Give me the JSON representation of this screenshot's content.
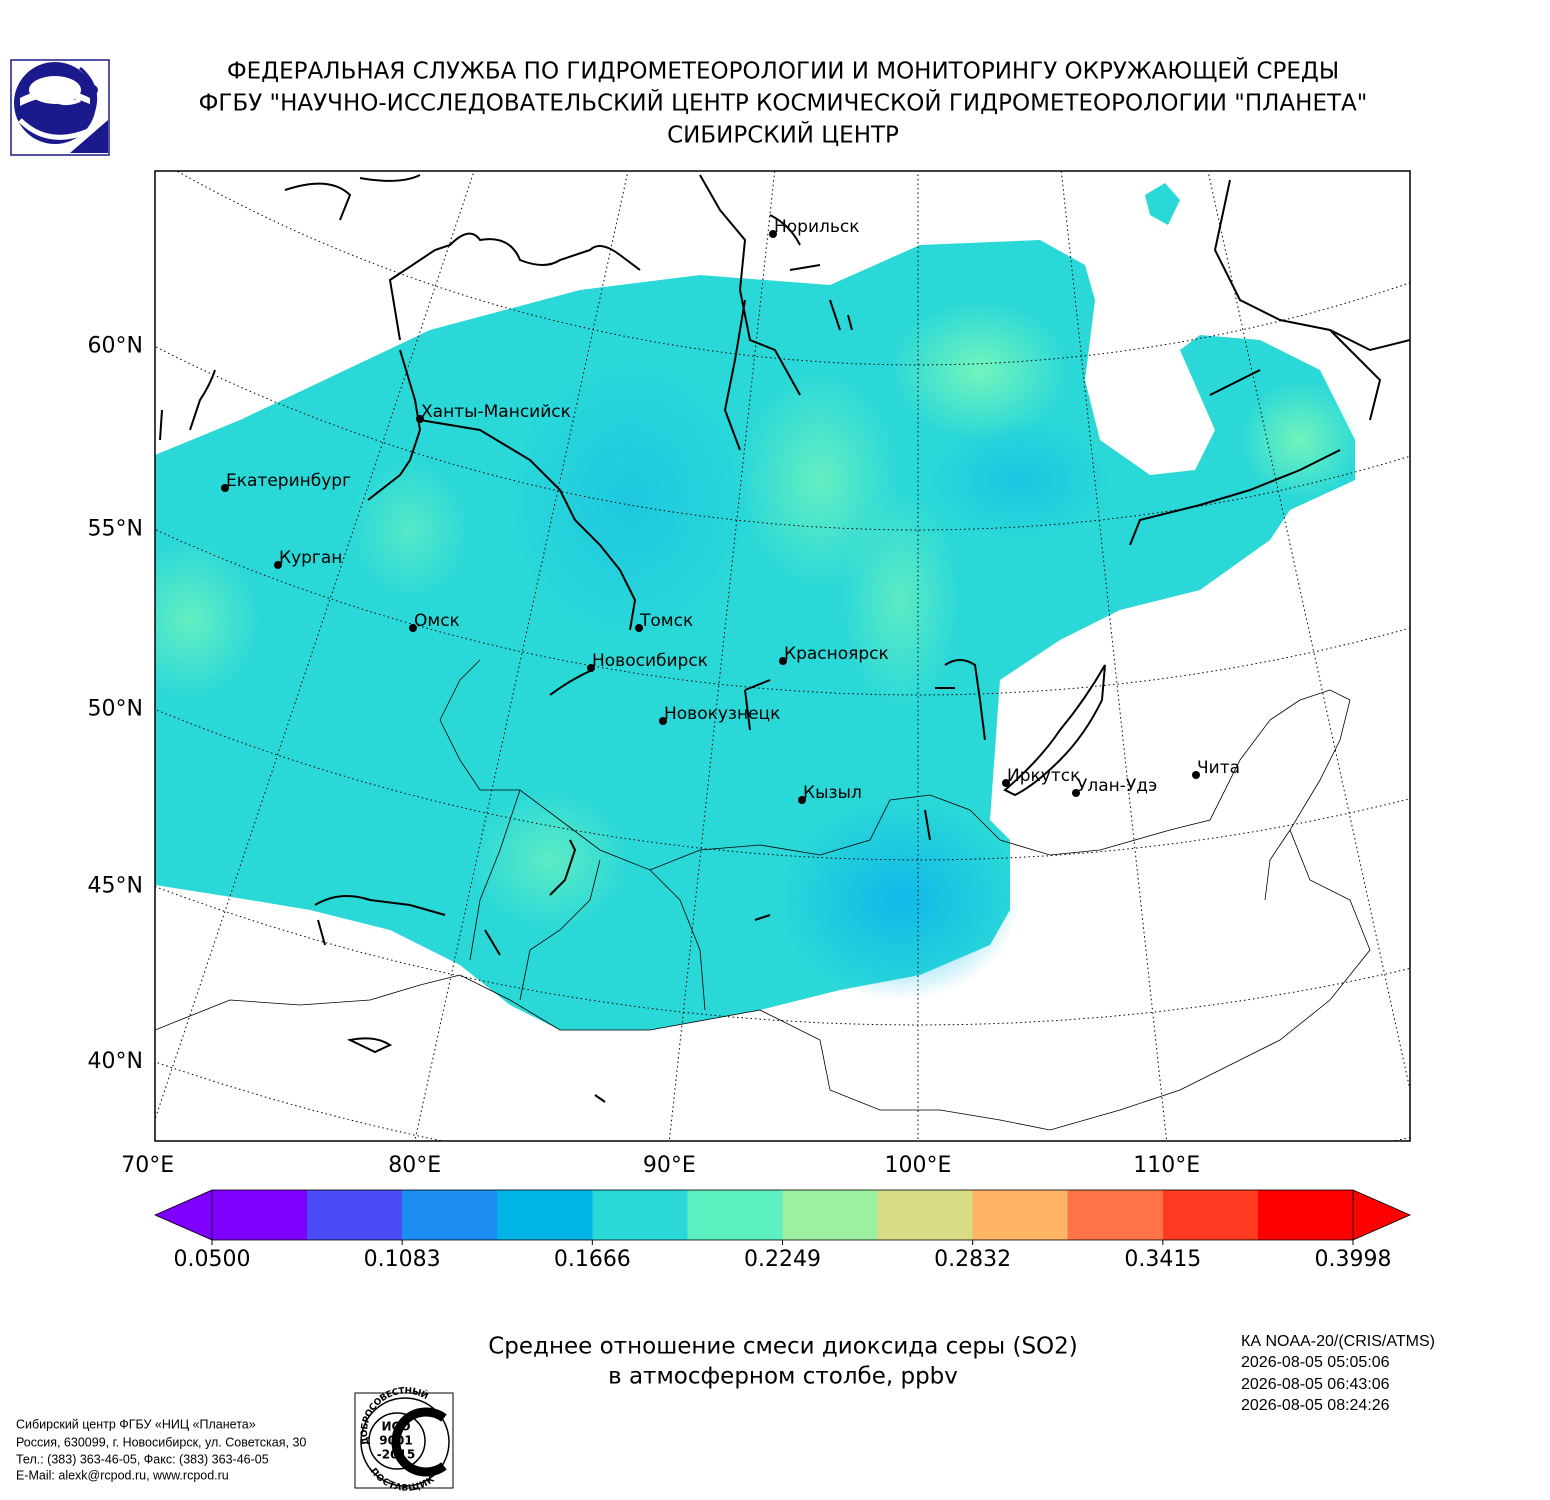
{
  "header": {
    "lines": [
      "ФЕДЕРАЛЬНАЯ СЛУЖБА ПО ГИДРОМЕТЕОРОЛОГИИ И МОНИТОРИНГУ ОКРУЖАЮЩЕЙ СРЕДЫ",
      "ФГБУ \"НАУЧНО-ИССЛЕДОВАТЕЛЬСКИЙ ЦЕНТР КОСМИЧЕСКОЙ ГИДРОМЕТЕОРОЛОГИИ \"ПЛАНЕТА\"",
      "СИБИРСКИЙ ЦЕНТР"
    ]
  },
  "map": {
    "lat_ticks": [
      {
        "value": 60,
        "label": "60°N"
      },
      {
        "value": 55,
        "label": "55°N"
      },
      {
        "value": 50,
        "label": "50°N"
      },
      {
        "value": 45,
        "label": "45°N"
      },
      {
        "value": 40,
        "label": "40°N"
      }
    ],
    "lon_ticks": [
      {
        "value": 70,
        "label": "70°E"
      },
      {
        "value": 80,
        "label": "80°E"
      },
      {
        "value": 90,
        "label": "90°E"
      },
      {
        "value": 100,
        "label": "100°E"
      },
      {
        "value": 110,
        "label": "110°E"
      }
    ],
    "cities": [
      "Норильск",
      "Ханты-Мансийск",
      "Екатеринбург",
      "Курган",
      "Омск",
      "Томск",
      "Новосибирск",
      "Красноярск",
      "Новокузнецк",
      "Иркутск",
      "Кызыл",
      "Улан-Удэ",
      "Чита"
    ]
  },
  "colorbar": {
    "clim": [
      0.05,
      0.3998
    ],
    "ticks": [
      {
        "value": 0.05,
        "label": "0.0500"
      },
      0.1083,
      0.1666,
      0.2249,
      0.2832,
      0.3415,
      0.3998
    ],
    "colors": [
      "#7f00ff",
      "#4a4cf8",
      "#1c8cf0",
      "#00b4e6",
      "#2ad8d8",
      "#5cf0c0",
      "#9cf0a0",
      "#d8dc84",
      "#ffb466",
      "#ff7446",
      "#ff3a20",
      "#ff0000"
    ]
  },
  "caption": {
    "lines": [
      "Среднее отношение смеси диоксида серы (SO2)",
      "в атмосферном столбе, ppbv"
    ]
  },
  "satellite": {
    "lines": [
      "КА NOAA-20/(CRIS/ATMS)",
      "2026-08-05 05:05:06",
      "2026-08-05 06:43:06",
      "2026-08-05 08:24:26"
    ]
  },
  "footer": {
    "lines": [
      "Сибирский центр ФГБУ «НИЦ «Планета»",
      "Россия, 630099, г. Новосибирск, ул. Советская, 30",
      "Тел.: (383) 363-46-05, Факс: (383) 363-46-05",
      "E-Mail: alexk@rcpod.ru, www.rcpod.ru"
    ]
  },
  "iso_logo": {
    "top": "ДОБРОСОВЕСТНЫЙ",
    "lines": [
      "ИСО",
      "9001",
      "-2015"
    ],
    "bottom": "ПОСТАВЩИК"
  }
}
